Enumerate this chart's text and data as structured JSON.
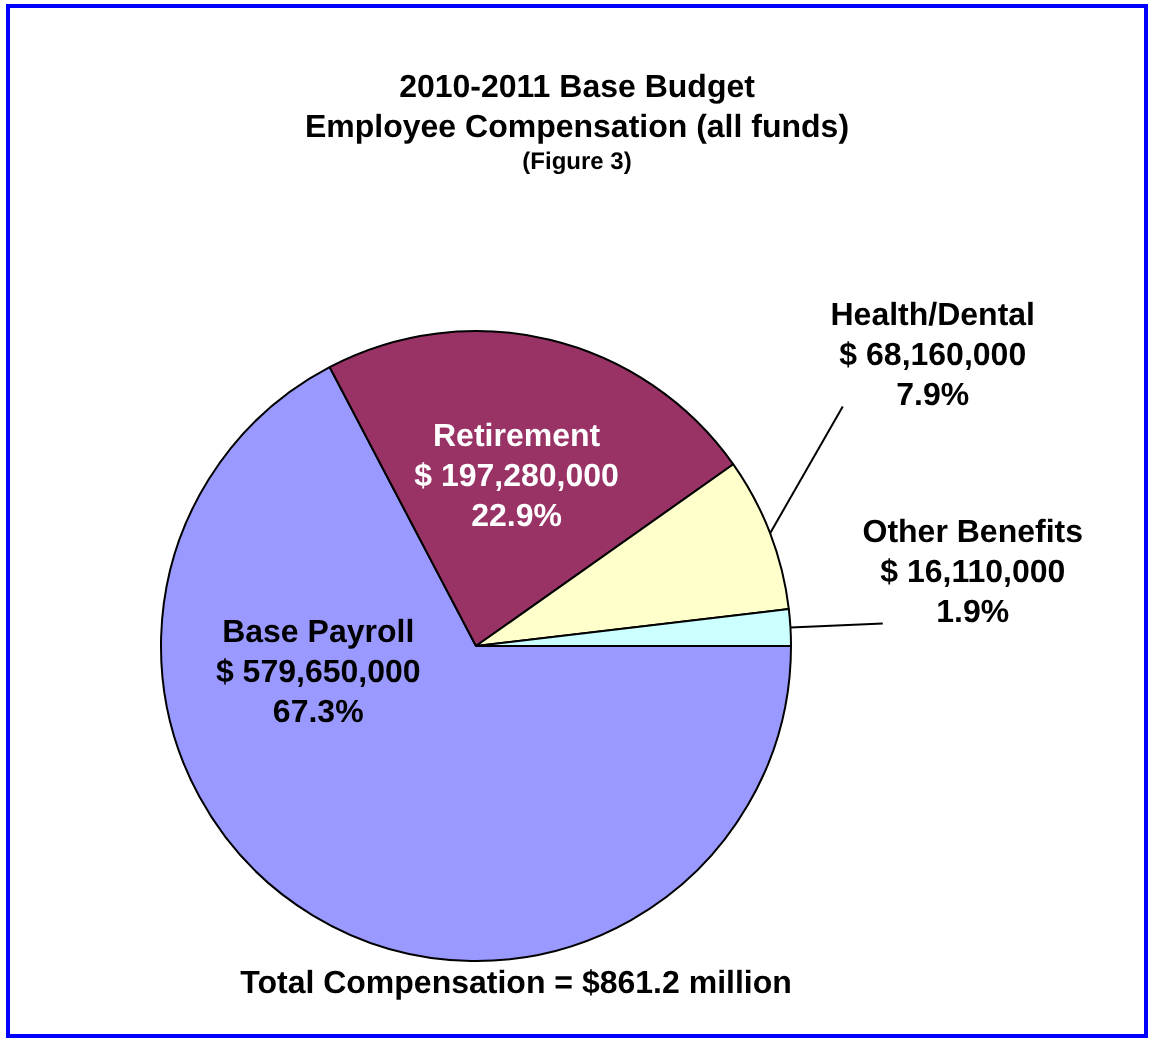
{
  "chart_data": {
    "type": "pie",
    "title": "2010-2011 Base Budget\nEmployee Compensation (all funds)",
    "subtitle": "(Figure 3)",
    "categories": [
      "Base Payroll",
      "Retirement",
      "Health/Dental",
      "Other Benefits"
    ],
    "values": [
      579650000,
      197280000,
      68160000,
      16110000
    ],
    "colors": [
      "#9999ff",
      "#993366",
      "#ffffcc",
      "#ccffff"
    ],
    "value_labels": [
      "$ 579,650,000\n67.3%",
      "$ 197,280,000\n22.9%",
      "$ 68,160,000\n7.9%",
      "$ 16,110,000\n1.9%"
    ],
    "annotations": [
      "Total Compensation = $861.2 million"
    ],
    "legend": false
  }
}
